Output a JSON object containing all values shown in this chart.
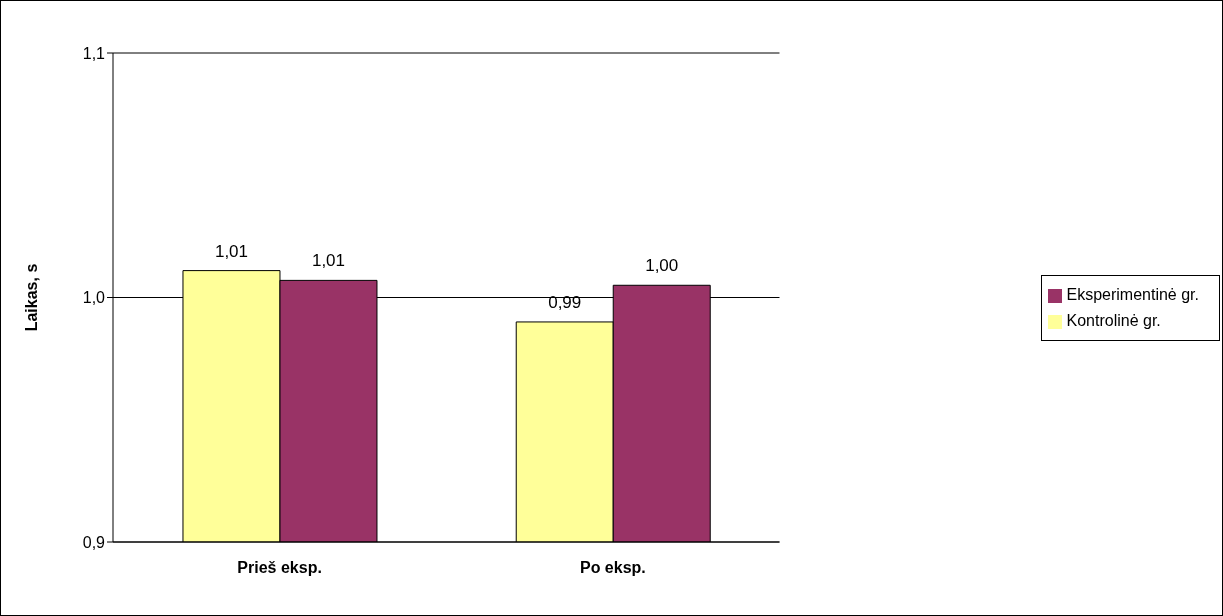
{
  "chart_data": {
    "type": "bar",
    "ylabel": "Laikas, s",
    "categories": [
      "Prieš eksp.",
      "Po eksp."
    ],
    "series": [
      {
        "name": "Kontrolinė gr.",
        "color": "#ffff99",
        "values": [
          1.011,
          0.99
        ],
        "value_labels": [
          "1,01",
          "0,99"
        ]
      },
      {
        "name": "Eksperimentinė gr.",
        "color": "#993366",
        "values": [
          1.007,
          1.005
        ],
        "value_labels": [
          "1,01",
          "1,00"
        ]
      }
    ],
    "ylim": [
      0.9,
      1.1
    ],
    "yticks": [
      {
        "value": 0.9,
        "label": "0,9"
      },
      {
        "value": 1.0,
        "label": "1,0"
      },
      {
        "value": 1.1,
        "label": "1,1"
      }
    ],
    "grid": "y",
    "legend": "right"
  }
}
